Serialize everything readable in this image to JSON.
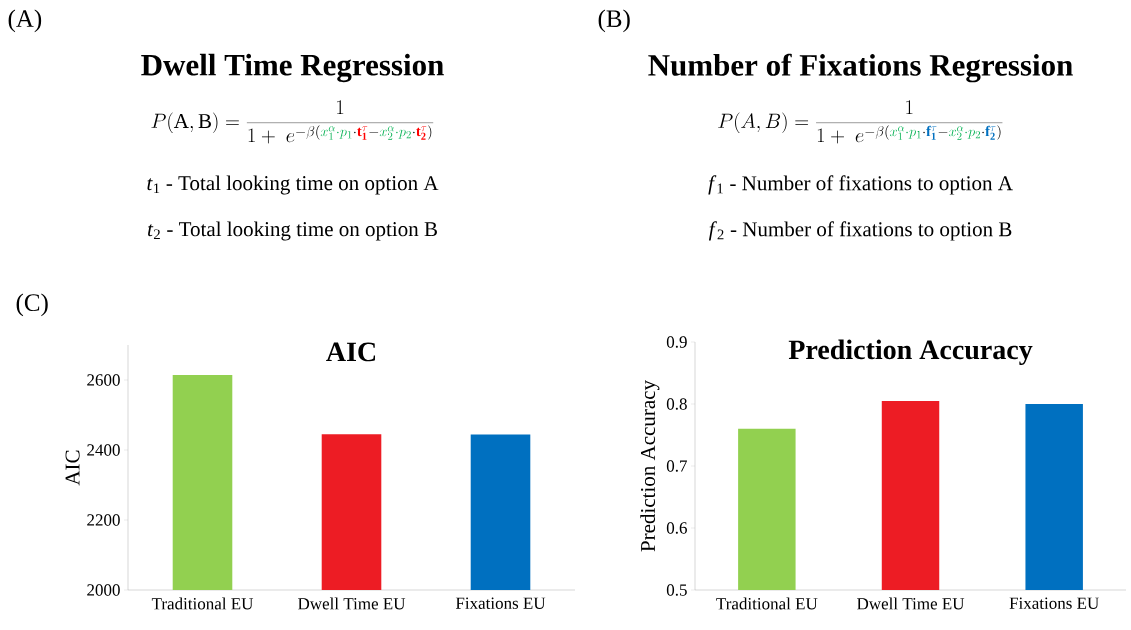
{
  "chart_data": [
    {
      "type": "other",
      "title": "Dwell Time Regression",
      "annotations": [
        "(A)",
        "P(\\mathrm{A},\\mathrm{B}) = \\frac{1}{1+\\ e^{-\\beta(\\textcolor[HTML]{00B050}{x_1^{\\alpha}\\cdot p_1}\\cdot\\textcolor[HTML]{FF0000}{\\mathbf{t}_{\\mathbf{1}}^{\\tau}} - \\textcolor[HTML]{00B050}{x_2^{\\alpha}\\cdot p_2}\\cdot\\textcolor[HTML]{FF0000}{\\mathbf{t}_{\\mathbf{2}}^{\\tau}})}}",
        "*t*$_{1}$ - Total looking time on option A",
        "*t*$_{2}$ - Total looking time on option B"
      ]
    },
    {
      "type": "other",
      "title": "Number of Fixations Regression",
      "annotations": [
        "(B)",
        "P(A,B) = \\frac{1}{1+\\ e^{-\\beta(\\textcolor[HTML]{00B050}{x_1^{\\alpha}\\cdot p_1}\\cdot\\textcolor[HTML]{0070C0}{\\mathbf{f}_{\\mathbf{1}}^{\\tau}} - \\textcolor[HTML]{00B050}{x_2^{\\alpha}\\cdot p_2}\\cdot\\textcolor[HTML]{0070C0}{\\mathbf{f}_{\\mathbf{2}}^{\\tau}})}}",
        "*f*$_{1}$ - Number of fixations to option A",
        "*f*$_{2}$ - Number of fixations to option B"
      ]
    },
    {
      "type": "bar",
      "title": "AIC",
      "ylabel": "AIC",
      "annotations": [
        "(C)"
      ],
      "categories": [
        "Traditional EU",
        "Dwell Time EU",
        "Fixations EU"
      ],
      "values": [
        2614,
        2445,
        2444
      ],
      "colors": [
        "#92d050",
        "#ed1c24",
        "#0070c0"
      ],
      "ylim": [
        2000,
        2700
      ],
      "yticks": [
        2000,
        2200,
        2400,
        2600
      ]
    },
    {
      "type": "bar",
      "title": "Prediction Accuracy",
      "ylabel": "Prediction Accuracy",
      "categories": [
        "Traditional EU",
        "Dwell Time EU",
        "Fixations EU"
      ],
      "values": [
        0.76,
        0.805,
        0.8
      ],
      "colors": [
        "#92d050",
        "#ed1c24",
        "#0070c0"
      ],
      "ylim": [
        0.5,
        0.9
      ],
      "yticks": [
        0.5,
        0.6,
        0.7,
        0.8,
        0.9
      ]
    }
  ]
}
